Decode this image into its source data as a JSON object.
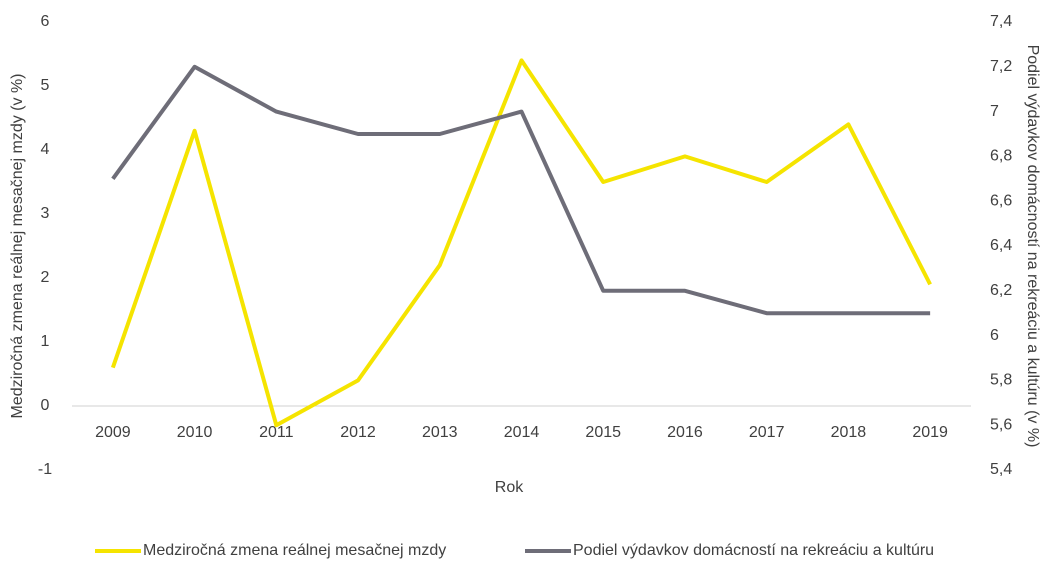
{
  "chart_data": {
    "type": "line",
    "x_label": "Rok",
    "y_label": "Medziročná zmena reálnej mesačnej mzdy (v %)",
    "y2_label": "Podiel výdavkov domácností na rekreáciu a kultúru (v %)",
    "categories": [
      "2009",
      "2010",
      "2011",
      "2012",
      "2013",
      "2014",
      "2015",
      "2016",
      "2017",
      "2018",
      "2019"
    ],
    "series": [
      {
        "name": "Medziročná zmena reálnej mesačnej mzdy",
        "color": "#f5e400",
        "values": [
          0.6,
          4.3,
          -0.3,
          0.4,
          2.2,
          5.4,
          3.5,
          3.9,
          3.5,
          4.4,
          1.9
        ]
      },
      {
        "name": "Podiel výdavkov domácností na rekreáciu a kultúru",
        "color": "#6e6d78",
        "axis": "y2",
        "values": [
          6.7,
          7.2,
          7.0,
          6.9,
          6.9,
          7.0,
          6.2,
          6.2,
          6.1,
          6.1,
          6.1
        ]
      }
    ],
    "ylim": [
      -1,
      6
    ],
    "yticks": [
      -1,
      0,
      1,
      2,
      3,
      4,
      5,
      6
    ],
    "y2lim": [
      5.4,
      7.4
    ],
    "y2ticks": [
      {
        "value": 5.4,
        "label": "5,4"
      },
      {
        "value": 5.6,
        "label": "5,6"
      },
      {
        "value": 5.8,
        "label": "5,8"
      },
      6,
      {
        "value": 6.2,
        "label": "6,2"
      },
      {
        "value": 6.4,
        "label": "6,4"
      },
      {
        "value": 6.6,
        "label": "6,6"
      },
      {
        "value": 6.8,
        "label": "6,8"
      },
      7,
      {
        "value": 7.2,
        "label": "7,2"
      },
      {
        "value": 7.4,
        "label": "7,4"
      }
    ],
    "legend": "bottom"
  }
}
